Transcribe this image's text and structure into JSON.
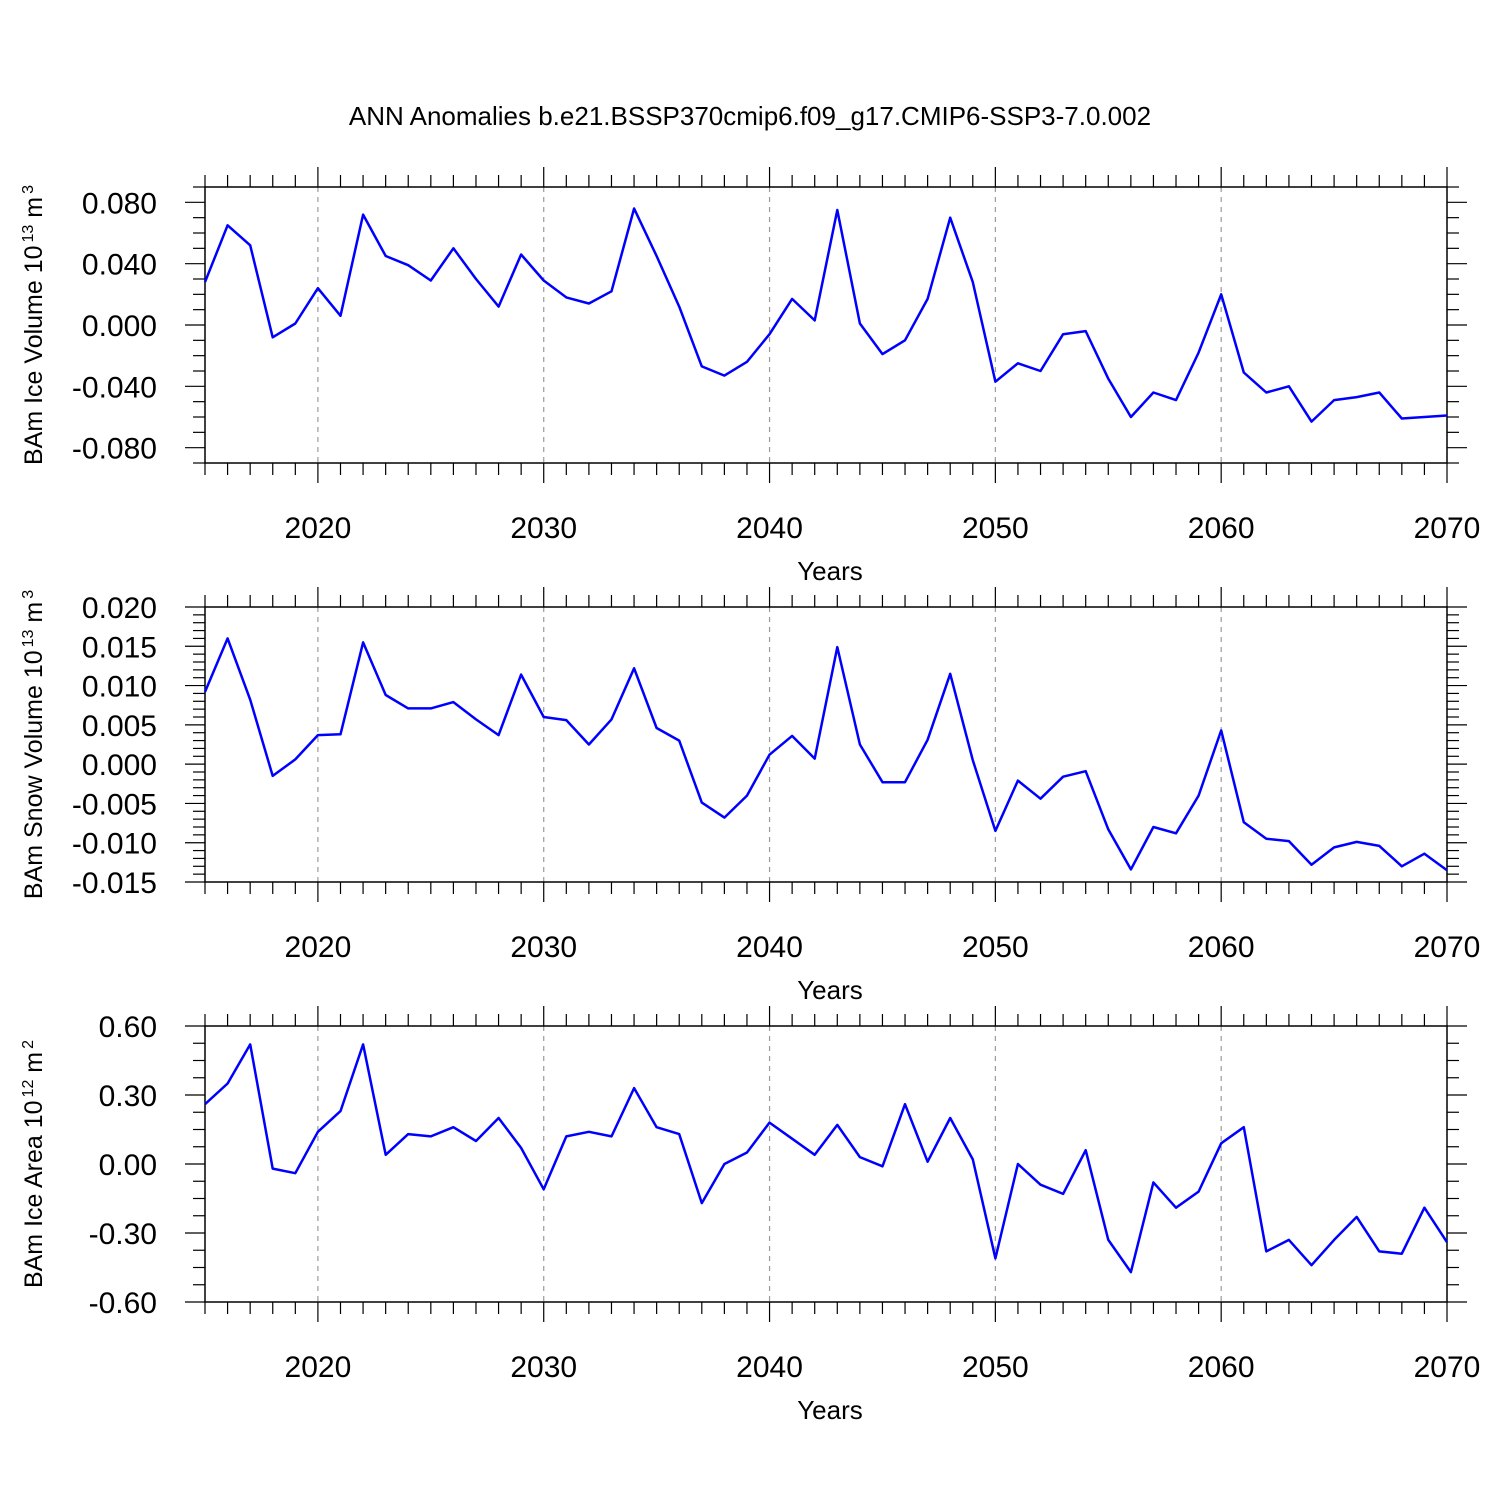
{
  "title": "ANN Anomalies b.e21.BSSP370cmip6.f09_g17.CMIP6-SSP3-7.0.002",
  "colors": {
    "line": "#0000ff",
    "grid": "#9a9a9a",
    "axis": "#000000"
  },
  "chart_data": [
    {
      "type": "line",
      "ylabel": "BAm Ice Volume 10",
      "ylabel_exp": "13",
      "ylabel_unit": "m",
      "ylabel_unit_exp": "3",
      "xlabel": "Years",
      "xlim": [
        2015,
        2070
      ],
      "ylim": [
        -0.09,
        0.09
      ],
      "yticks": [
        -0.08,
        -0.04,
        0.0,
        0.04,
        0.08
      ],
      "ytick_labels": [
        "-0.080",
        "-0.040",
        "0.000",
        "0.040",
        "0.080"
      ],
      "xticks": [
        2020,
        2030,
        2040,
        2050,
        2060,
        2070
      ],
      "xtick_labels": [
        "2020",
        "2030",
        "2040",
        "2050",
        "2060",
        "2070"
      ],
      "grid": "vertical dashed at major x ticks",
      "x": [
        2015,
        2016,
        2017,
        2018,
        2019,
        2020,
        2021,
        2022,
        2023,
        2024,
        2025,
        2026,
        2027,
        2028,
        2029,
        2030,
        2031,
        2032,
        2033,
        2034,
        2035,
        2036,
        2037,
        2038,
        2039,
        2040,
        2041,
        2042,
        2043,
        2044,
        2045,
        2046,
        2047,
        2048,
        2049,
        2050,
        2051,
        2052,
        2053,
        2054,
        2055,
        2056,
        2057,
        2058,
        2059,
        2060,
        2061,
        2062,
        2063,
        2064,
        2065,
        2066,
        2067,
        2068,
        2069,
        2070
      ],
      "values": [
        0.028,
        0.065,
        0.052,
        -0.008,
        0.001,
        0.024,
        0.006,
        0.072,
        0.045,
        0.039,
        0.029,
        0.05,
        0.03,
        0.012,
        0.046,
        0.029,
        0.018,
        0.014,
        0.022,
        0.076,
        0.045,
        0.012,
        -0.027,
        -0.033,
        -0.024,
        -0.006,
        0.017,
        0.003,
        0.075,
        0.001,
        -0.019,
        -0.01,
        0.017,
        0.07,
        0.028,
        -0.037,
        -0.025,
        -0.03,
        -0.006,
        -0.004,
        -0.035,
        -0.06,
        -0.044,
        -0.049,
        -0.018,
        0.02,
        -0.031,
        -0.044,
        -0.04,
        -0.063,
        -0.049,
        -0.047,
        -0.044,
        -0.061,
        -0.06,
        -0.059
      ]
    },
    {
      "type": "line",
      "ylabel": "BAm Snow Volume 10",
      "ylabel_exp": "13",
      "ylabel_unit": "m",
      "ylabel_unit_exp": "3",
      "xlabel": "Years",
      "xlim": [
        2015,
        2070
      ],
      "ylim": [
        -0.015,
        0.02
      ],
      "yticks": [
        -0.015,
        -0.01,
        -0.005,
        0.0,
        0.005,
        0.01,
        0.015,
        0.02
      ],
      "ytick_labels": [
        "-0.015",
        "-0.010",
        "-0.005",
        "0.000",
        "0.005",
        "0.010",
        "0.015",
        "0.020"
      ],
      "xticks": [
        2020,
        2030,
        2040,
        2050,
        2060,
        2070
      ],
      "xtick_labels": [
        "2020",
        "2030",
        "2040",
        "2050",
        "2060",
        "2070"
      ],
      "grid": "vertical dashed at major x ticks",
      "x": [
        2015,
        2016,
        2017,
        2018,
        2019,
        2020,
        2021,
        2022,
        2023,
        2024,
        2025,
        2026,
        2027,
        2028,
        2029,
        2030,
        2031,
        2032,
        2033,
        2034,
        2035,
        2036,
        2037,
        2038,
        2039,
        2040,
        2041,
        2042,
        2043,
        2044,
        2045,
        2046,
        2047,
        2048,
        2049,
        2050,
        2051,
        2052,
        2053,
        2054,
        2055,
        2056,
        2057,
        2058,
        2059,
        2060,
        2061,
        2062,
        2063,
        2064,
        2065,
        2066,
        2067,
        2068,
        2069,
        2070
      ],
      "values": [
        0.0092,
        0.016,
        0.0082,
        -0.0015,
        0.0006,
        0.0037,
        0.0038,
        0.0155,
        0.0088,
        0.0071,
        0.0071,
        0.0079,
        0.0057,
        0.0037,
        0.0114,
        0.006,
        0.0056,
        0.0025,
        0.0057,
        0.0122,
        0.0046,
        0.003,
        -0.0049,
        -0.0068,
        -0.004,
        0.0012,
        0.0036,
        0.0007,
        0.0149,
        0.0025,
        -0.0023,
        -0.0023,
        0.0031,
        0.0115,
        0.0005,
        -0.0085,
        -0.0021,
        -0.0044,
        -0.0016,
        -0.0009,
        -0.0083,
        -0.0134,
        -0.008,
        -0.0088,
        -0.004,
        0.0043,
        -0.0074,
        -0.0095,
        -0.0098,
        -0.0128,
        -0.0106,
        -0.0099,
        -0.0104,
        -0.013,
        -0.0114,
        -0.0135
      ]
    },
    {
      "type": "line",
      "ylabel": "BAm Ice Area 10",
      "ylabel_exp": "12",
      "ylabel_unit": "m",
      "ylabel_unit_exp": "2",
      "xlabel": "Years",
      "xlim": [
        2015,
        2070
      ],
      "ylim": [
        -0.6,
        0.6
      ],
      "yticks": [
        -0.6,
        -0.3,
        0.0,
        0.3,
        0.6
      ],
      "ytick_labels": [
        "-0.60",
        "-0.30",
        "0.00",
        "0.30",
        "0.60"
      ],
      "xticks": [
        2020,
        2030,
        2040,
        2050,
        2060,
        2070
      ],
      "xtick_labels": [
        "2020",
        "2030",
        "2040",
        "2050",
        "2060",
        "2070"
      ],
      "grid": "vertical dashed at major x ticks",
      "x": [
        2015,
        2016,
        2017,
        2018,
        2019,
        2020,
        2021,
        2022,
        2023,
        2024,
        2025,
        2026,
        2027,
        2028,
        2029,
        2030,
        2031,
        2032,
        2033,
        2034,
        2035,
        2036,
        2037,
        2038,
        2039,
        2040,
        2041,
        2042,
        2043,
        2044,
        2045,
        2046,
        2047,
        2048,
        2049,
        2050,
        2051,
        2052,
        2053,
        2054,
        2055,
        2056,
        2057,
        2058,
        2059,
        2060,
        2061,
        2062,
        2063,
        2064,
        2065,
        2066,
        2067,
        2068,
        2069,
        2070
      ],
      "values": [
        0.26,
        0.35,
        0.52,
        -0.02,
        -0.04,
        0.14,
        0.23,
        0.52,
        0.04,
        0.13,
        0.12,
        0.16,
        0.1,
        0.2,
        0.07,
        -0.11,
        0.12,
        0.14,
        0.12,
        0.33,
        0.16,
        0.13,
        -0.17,
        0.0,
        0.05,
        0.18,
        0.11,
        0.04,
        0.17,
        0.03,
        -0.01,
        0.26,
        0.01,
        0.2,
        0.02,
        -0.41,
        0.0,
        -0.09,
        -0.13,
        0.06,
        -0.33,
        -0.47,
        -0.08,
        -0.19,
        -0.12,
        0.09,
        0.16,
        -0.38,
        -0.33,
        -0.44,
        -0.33,
        -0.23,
        -0.38,
        -0.39,
        -0.19,
        -0.34
      ]
    }
  ]
}
